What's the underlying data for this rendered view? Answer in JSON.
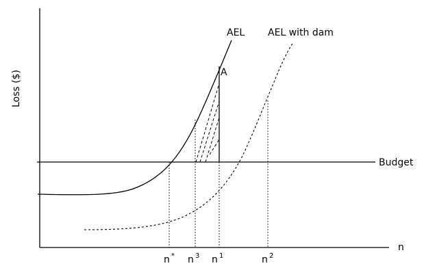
{
  "chart_data": {
    "type": "line",
    "title": "",
    "ylabel": "Loss ($)",
    "xlabel": "n",
    "grid": false,
    "series": [
      {
        "name": "AEL"
      },
      {
        "name": "AEL with dam"
      },
      {
        "name": "Budget"
      }
    ],
    "annotations": {
      "point_a": "A",
      "n_star_base": "n",
      "n_star_sup": "*",
      "n3_base": "n",
      "n3_sup": "3",
      "n1_base": "n",
      "n1_sup": "1",
      "n2_base": "n",
      "n2_sup": "2"
    }
  }
}
